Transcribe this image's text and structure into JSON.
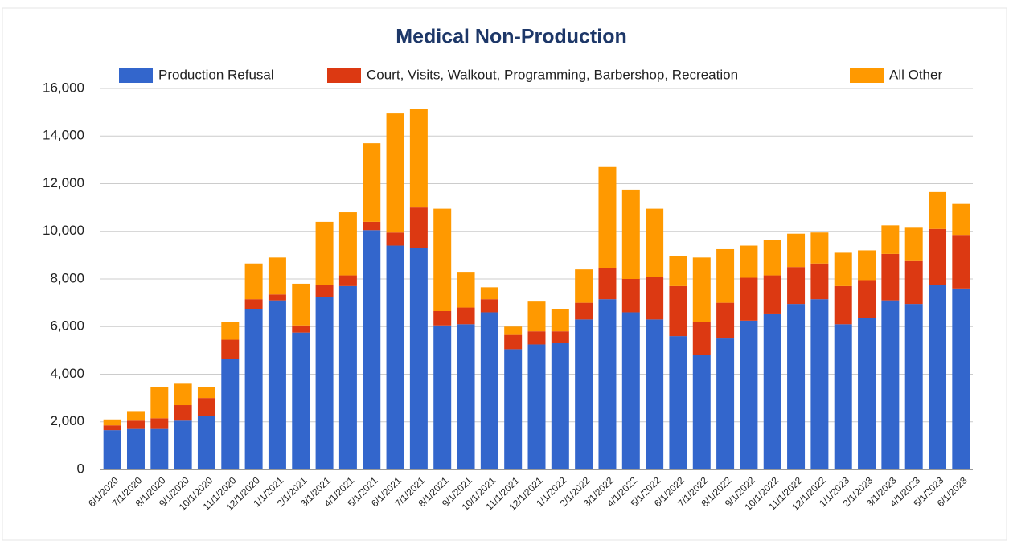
{
  "chart_data": {
    "type": "stacked_bar",
    "title": "Medical Non-Production",
    "categories": [
      "6/1/2020",
      "7/1/2020",
      "8/1/2020",
      "9/1/2020",
      "10/1/2020",
      "11/1/2020",
      "12/1/2020",
      "1/1/2021",
      "2/1/2021",
      "3/1/2021",
      "4/1/2021",
      "5/1/2021",
      "6/1/2021",
      "7/1/2021",
      "8/1/2021",
      "9/1/2021",
      "10/1/2021",
      "11/1/2021",
      "12/1/2021",
      "1/1/2022",
      "2/1/2022",
      "3/1/2022",
      "4/1/2022",
      "5/1/2022",
      "6/1/2022",
      "7/1/2022",
      "8/1/2022",
      "9/1/2022",
      "10/1/2022",
      "11/1/2022",
      "12/1/2022",
      "1/1/2023",
      "2/1/2023",
      "3/1/2023",
      "4/1/2023",
      "5/1/2023",
      "6/1/2023"
    ],
    "series": [
      {
        "name": "Production Refusal",
        "color": "#3366cc",
        "values": [
          1650,
          1700,
          1700,
          2050,
          2250,
          4650,
          6750,
          7100,
          5750,
          7250,
          7700,
          10050,
          9400,
          9300,
          6050,
          6100,
          6600,
          5050,
          5250,
          5300,
          6300,
          7150,
          6600,
          6300,
          5600,
          4800,
          5500,
          6250,
          6550,
          6950,
          7150,
          6100,
          6350,
          7100,
          6950,
          7750,
          7600
        ]
      },
      {
        "name": "Court, Visits, Walkout, Programming, Barbershop, Recreation",
        "color": "#dc3912",
        "values": [
          200,
          350,
          450,
          650,
          750,
          800,
          400,
          250,
          300,
          500,
          450,
          350,
          550,
          1700,
          600,
          700,
          550,
          600,
          550,
          500,
          700,
          1300,
          1400,
          1800,
          2100,
          1400,
          1500,
          1800,
          1600,
          1550,
          1500,
          1600,
          1600,
          1950,
          1800,
          2350,
          2250
        ]
      },
      {
        "name": "All Other",
        "color": "#ff9900",
        "values": [
          250,
          400,
          1300,
          900,
          450,
          750,
          1500,
          1550,
          1750,
          2650,
          2650,
          3300,
          5000,
          4150,
          4300,
          1500,
          500,
          350,
          1250,
          950,
          1400,
          4250,
          3750,
          2850,
          1250,
          2700,
          2250,
          1350,
          1500,
          1400,
          1300,
          1400,
          1250,
          1200,
          1400,
          1550,
          1300
        ]
      }
    ],
    "ylim": [
      0,
      16000
    ],
    "yticks": [
      0,
      {
        "value": 2000,
        "label": "2,000"
      },
      {
        "value": 4000,
        "label": "4,000"
      },
      {
        "value": 6000,
        "label": "6,000"
      },
      {
        "value": 8000,
        "label": "8,000"
      },
      {
        "value": 10000,
        "label": "10,000"
      },
      {
        "value": 12000,
        "label": "12,000"
      },
      {
        "value": 14000,
        "label": "14,000"
      },
      {
        "value": 16000,
        "label": "16,000"
      }
    ],
    "grid": true,
    "legend": "top"
  }
}
